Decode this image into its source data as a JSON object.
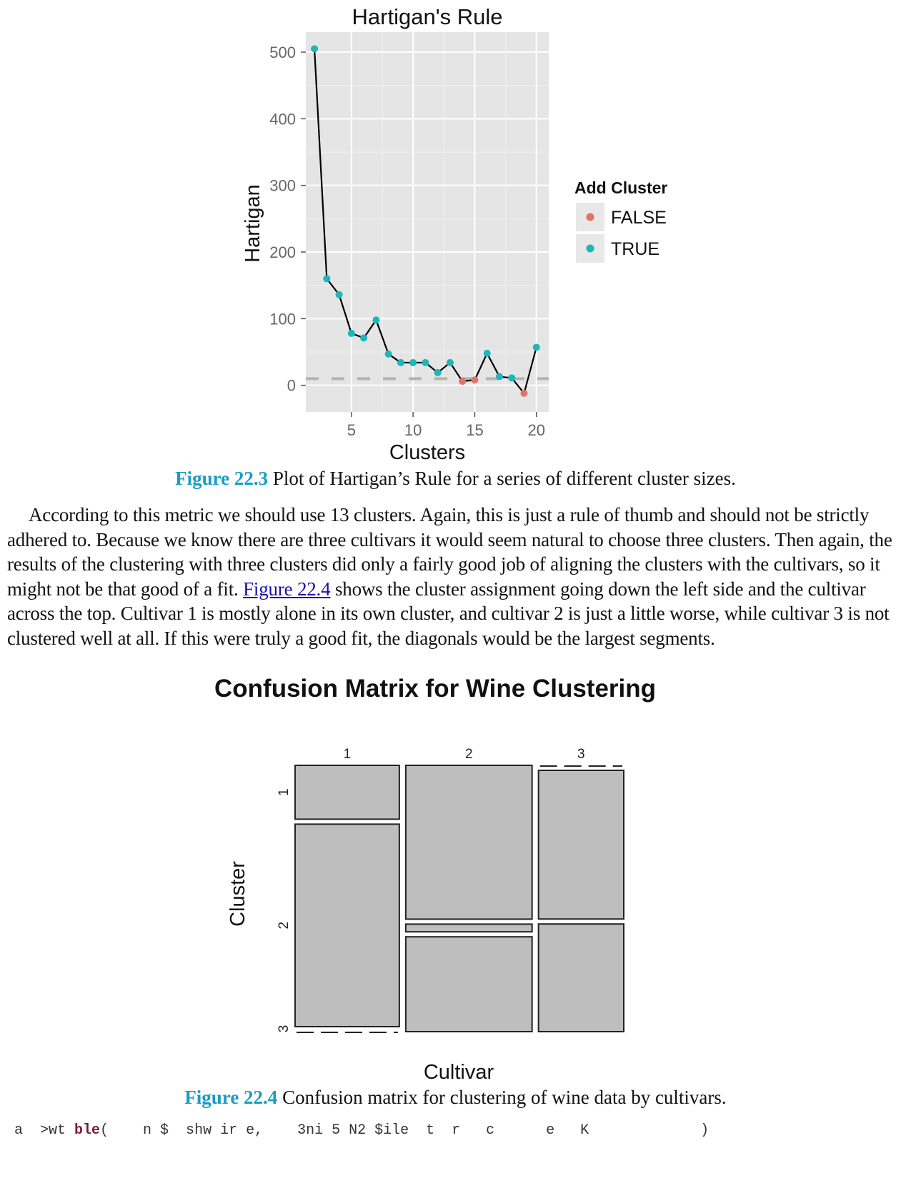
{
  "figure1": {
    "number": "Figure 22.3",
    "caption": " Plot of Hartigan’s Rule for a series of different cluster sizes."
  },
  "paragraph": {
    "text_before_link": "According to this metric we should use 13 clusters. Again, this is just a rule of thumb and should not be strictly adhered to. Because we know there are three cultivars it would seem natural to choose three clusters. Then again, the results of the clustering with three clusters did only a fairly good job of aligning the clusters with the cultivars, so it might not be that good of a fit. ",
    "link": "Figure 22.4",
    "text_after_link": " shows the cluster assignment going down the left side and the cultivar across the top. Cultivar 1 is mostly alone in its own cluster, and cultivar 2 is just a little worse, while cultivar 3 is not clustered well at all. If this were truly a good fit, the diagonals would be the largest segments."
  },
  "figure2": {
    "number": "Figure 22.4",
    "caption": " Confusion matrix for clustering of wine data by cultivars."
  },
  "code_fragment": {
    "part1": "a  >wt ",
    "kw": "ble",
    "part2": "(    n $  s",
    "part3": "hw ir e,    3ni 5 N2 $ile  t  r   c      e   K             )"
  },
  "chart_data": [
    {
      "type": "line",
      "title": "Hartigan's Rule",
      "xlabel": "Clusters",
      "ylabel": "Hartigan",
      "x_ticks": [
        5,
        10,
        15,
        20
      ],
      "y_ticks": [
        0,
        100,
        200,
        300,
        400,
        500
      ],
      "xlim": [
        1.3,
        21
      ],
      "ylim": [
        -40,
        530
      ],
      "reference_line_y": 10,
      "grid": true,
      "legend": {
        "title": "Add Cluster",
        "placement": "right",
        "entries": [
          {
            "label": "FALSE",
            "color": "#e0736b"
          },
          {
            "label": "TRUE",
            "color": "#1fb5b9"
          }
        ]
      },
      "line_color": "#000000",
      "points": [
        {
          "x": 2,
          "y": 505,
          "add": true
        },
        {
          "x": 3,
          "y": 160,
          "add": true
        },
        {
          "x": 4,
          "y": 136,
          "add": true
        },
        {
          "x": 5,
          "y": 78,
          "add": true
        },
        {
          "x": 6,
          "y": 71,
          "add": true
        },
        {
          "x": 7,
          "y": 98,
          "add": true
        },
        {
          "x": 8,
          "y": 47,
          "add": true
        },
        {
          "x": 9,
          "y": 34,
          "add": true
        },
        {
          "x": 10,
          "y": 34,
          "add": true
        },
        {
          "x": 11,
          "y": 34,
          "add": true
        },
        {
          "x": 12,
          "y": 19,
          "add": true
        },
        {
          "x": 13,
          "y": 34,
          "add": true
        },
        {
          "x": 14,
          "y": 6,
          "add": false
        },
        {
          "x": 15,
          "y": 8,
          "add": false
        },
        {
          "x": 16,
          "y": 48,
          "add": true
        },
        {
          "x": 17,
          "y": 13,
          "add": true
        },
        {
          "x": 18,
          "y": 11,
          "add": true
        },
        {
          "x": 19,
          "y": -12,
          "add": false
        },
        {
          "x": 20,
          "y": 57,
          "add": true
        }
      ]
    },
    {
      "type": "mosaic",
      "title": "Confusion Matrix for Wine Clustering",
      "xlabel": "Cultivar",
      "ylabel": "Cluster",
      "columns": [
        "1",
        "2",
        "3"
      ],
      "rows": [
        "1",
        "2",
        "3"
      ],
      "column_proportions": [
        0.33,
        0.4,
        0.27
      ],
      "cell_proportions": [
        [
          0.21,
          0.79,
          0.0
        ],
        [
          0.6,
          0.03,
          0.37
        ],
        [
          0.0,
          0.58,
          0.42
        ]
      ],
      "fill": "#bebebe"
    }
  ]
}
